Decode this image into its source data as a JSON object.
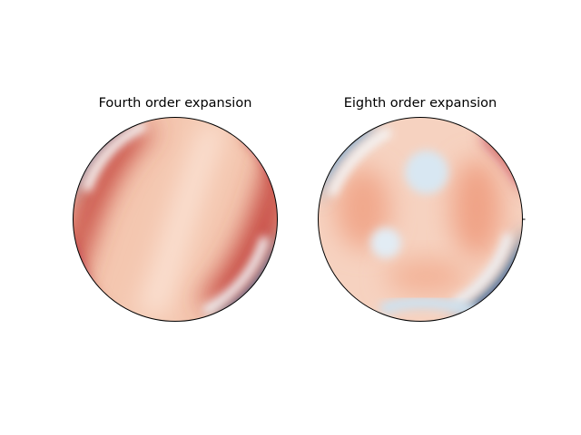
{
  "chart_data": [
    {
      "type": "heatmap",
      "title": "Fourth order expansion",
      "projection": "polar",
      "colormap": "RdBu_r",
      "colors": {
        "red": "#a50026",
        "white": "#f7f7f7",
        "blue": "#053061"
      },
      "features": [
        {
          "kind": "band",
          "color": "#c0433b",
          "description_angle_deg": 62,
          "offset": -0.45
        },
        {
          "kind": "band",
          "color": "#c44a3e",
          "description_angle_deg": 62,
          "offset": 0.35
        },
        {
          "kind": "edge",
          "color": "#1a5a99",
          "angle_deg": 150
        },
        {
          "kind": "edge",
          "color": "#0b4a8a",
          "angle_deg": -35
        }
      ]
    },
    {
      "type": "heatmap",
      "title": "Eighth order expansion",
      "projection": "polar",
      "colormap": "RdBu_r",
      "colors": {
        "red": "#a50026",
        "white": "#f7f7f7",
        "blue": "#053061"
      },
      "features": [
        {
          "kind": "spot",
          "color": "#dbe9f3",
          "position": "upper-center"
        },
        {
          "kind": "spot",
          "color": "#e3edf5",
          "position": "left-lower"
        },
        {
          "kind": "edge",
          "color": "#2f6fb0",
          "angle_deg": 145
        },
        {
          "kind": "edge",
          "color": "#0b4a8a",
          "angle_deg": -40
        },
        {
          "kind": "edge",
          "color": "#b2182b",
          "angle_deg": 35
        }
      ]
    }
  ]
}
